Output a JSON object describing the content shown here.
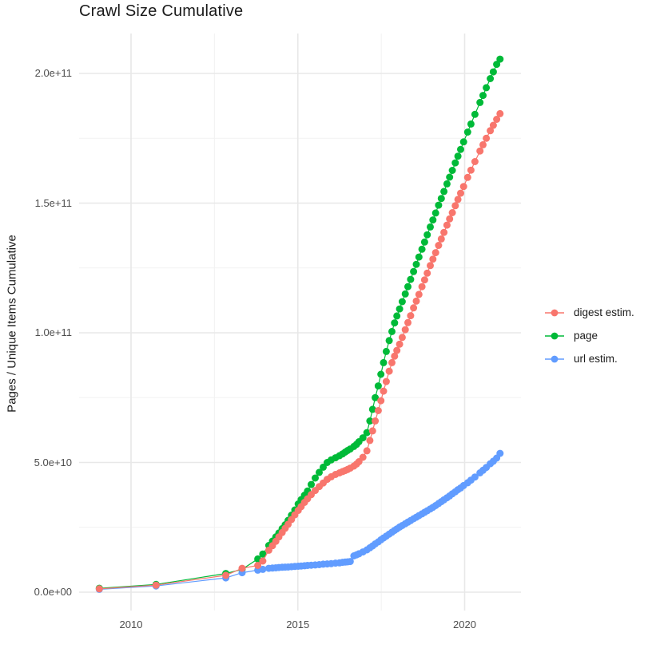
{
  "header": {
    "title": "Crawl Size Cumulative"
  },
  "legend": {
    "items": [
      {
        "label": "digest estim.",
        "color": "#F8766D"
      },
      {
        "label": "page",
        "color": "#00BA38"
      },
      {
        "label": "url estim.",
        "color": "#619CFF"
      }
    ]
  },
  "chart_data": {
    "type": "line",
    "title": "Crawl Size Cumulative",
    "xlabel": "",
    "ylabel": "Pages / Unique Items Cumulative",
    "grid": true,
    "legend_position": "right",
    "background": "#ffffff",
    "grid_major_color": "#e8e8e8",
    "grid_minor_color": "#f2f2f2",
    "xlim": [
      2008.44,
      2021.69
    ],
    "ylim": [
      -7100000000.0,
      215400000000.0
    ],
    "x_ticks": [
      {
        "label": "2010",
        "value": 2010
      },
      {
        "label": "2015",
        "value": 2015
      },
      {
        "label": "2020",
        "value": 2020
      }
    ],
    "x_minor_ticks": [
      2012.5,
      2017.5
    ],
    "y_ticks": [
      {
        "label": "0.0e+00",
        "value": 0
      },
      {
        "label": "5.0e+10",
        "value": 50000000000.0
      },
      {
        "label": "1.0e+11",
        "value": 100000000000.0
      },
      {
        "label": "1.5e+11",
        "value": 150000000000.0
      },
      {
        "label": "2.0e+11",
        "value": 200000000000.0
      }
    ],
    "y_minor_ticks": [
      25000000000.0,
      75000000000.0,
      125000000000.0,
      175000000000.0
    ],
    "series": [
      {
        "name": "digest estim.",
        "color": "#F8766D",
        "points": [
          [
            2009.05,
            1300000000.0
          ],
          [
            2010.75,
            2700000000.0
          ],
          [
            2012.84,
            6500000000.0
          ],
          [
            2013.33,
            9200000000.0
          ],
          [
            2013.8,
            10300000000.0
          ],
          [
            2013.95,
            12000000000.0
          ],
          [
            2014.13,
            16200000000.0
          ],
          [
            2014.24,
            17900000000.0
          ],
          [
            2014.34,
            19600000000.0
          ],
          [
            2014.43,
            21300000000.0
          ],
          [
            2014.53,
            23000000000.0
          ],
          [
            2014.62,
            24600000000.0
          ],
          [
            2014.71,
            26200000000.0
          ],
          [
            2014.81,
            28000000000.0
          ],
          [
            2014.91,
            29800000000.0
          ],
          [
            2015.01,
            31500000000.0
          ],
          [
            2015.1,
            33000000000.0
          ],
          [
            2015.2,
            34600000000.0
          ],
          [
            2015.29,
            36000000000.0
          ],
          [
            2015.4,
            37600000000.0
          ],
          [
            2015.52,
            39200000000.0
          ],
          [
            2015.64,
            40700000000.0
          ],
          [
            2015.76,
            42100000000.0
          ],
          [
            2015.88,
            43500000000.0
          ],
          [
            2016.0,
            44500000000.0
          ],
          [
            2016.13,
            45400000000.0
          ],
          [
            2016.25,
            46000000000.0
          ],
          [
            2016.34,
            46500000000.0
          ],
          [
            2016.42,
            46900000000.0
          ],
          [
            2016.49,
            47300000000.0
          ],
          [
            2016.57,
            47800000000.0
          ],
          [
            2016.68,
            48600000000.0
          ],
          [
            2016.76,
            49400000000.0
          ],
          [
            2016.83,
            50300000000.0
          ],
          [
            2016.95,
            52000000000.0
          ],
          [
            2017.07,
            54500000000.0
          ],
          [
            2017.16,
            58500000000.0
          ],
          [
            2017.24,
            62200000000.0
          ],
          [
            2017.32,
            66000000000.0
          ],
          [
            2017.41,
            70000000000.0
          ],
          [
            2017.49,
            73800000000.0
          ],
          [
            2017.57,
            77500000000.0
          ],
          [
            2017.65,
            81200000000.0
          ],
          [
            2017.74,
            85200000000.0
          ],
          [
            2017.82,
            88500000000.0
          ],
          [
            2017.9,
            91000000000.0
          ],
          [
            2017.97,
            93200000000.0
          ],
          [
            2018.05,
            95600000000.0
          ],
          [
            2018.13,
            98200000000.0
          ],
          [
            2018.22,
            101200000000.0
          ],
          [
            2018.3,
            103900000000.0
          ],
          [
            2018.38,
            106600000000.0
          ],
          [
            2018.47,
            109600000000.0
          ],
          [
            2018.55,
            112200000000.0
          ],
          [
            2018.63,
            114800000000.0
          ],
          [
            2018.72,
            117800000000.0
          ],
          [
            2018.8,
            120400000000.0
          ],
          [
            2018.88,
            123000000000.0
          ],
          [
            2018.97,
            125900000000.0
          ],
          [
            2019.05,
            128400000000.0
          ],
          [
            2019.13,
            130900000000.0
          ],
          [
            2019.22,
            133700000000.0
          ],
          [
            2019.3,
            136200000000.0
          ],
          [
            2019.38,
            138700000000.0
          ],
          [
            2019.47,
            141500000000.0
          ],
          [
            2019.55,
            143900000000.0
          ],
          [
            2019.63,
            146300000000.0
          ],
          [
            2019.72,
            149000000000.0
          ],
          [
            2019.8,
            151400000000.0
          ],
          [
            2019.88,
            153800000000.0
          ],
          [
            2019.97,
            156400000000.0
          ],
          [
            2020.09,
            159900000000.0
          ],
          [
            2020.19,
            162700000000.0
          ],
          [
            2020.31,
            166000000000.0
          ],
          [
            2020.46,
            170100000000.0
          ],
          [
            2020.55,
            172500000000.0
          ],
          [
            2020.65,
            175000000000.0
          ],
          [
            2020.77,
            177900000000.0
          ],
          [
            2020.86,
            180000000000.0
          ],
          [
            2020.96,
            182300000000.0
          ],
          [
            2021.06,
            184500000000.0
          ]
        ]
      },
      {
        "name": "page",
        "color": "#00BA38",
        "points": [
          [
            2009.05,
            1500000000.0
          ],
          [
            2010.75,
            3000000000.0
          ],
          [
            2012.84,
            7200000000.0
          ],
          [
            2013.33,
            8800000000.0
          ],
          [
            2013.8,
            12800000000.0
          ],
          [
            2013.95,
            14700000000.0
          ],
          [
            2014.13,
            18000000000.0
          ],
          [
            2014.24,
            19700000000.0
          ],
          [
            2014.34,
            21300000000.0
          ],
          [
            2014.43,
            22800000000.0
          ],
          [
            2014.53,
            24500000000.0
          ],
          [
            2014.62,
            26000000000.0
          ],
          [
            2014.71,
            27700000000.0
          ],
          [
            2014.81,
            29700000000.0
          ],
          [
            2014.91,
            31700000000.0
          ],
          [
            2015.01,
            34000000000.0
          ],
          [
            2015.1,
            35700000000.0
          ],
          [
            2015.2,
            37400000000.0
          ],
          [
            2015.29,
            39000000000.0
          ],
          [
            2015.4,
            41500000000.0
          ],
          [
            2015.52,
            44000000000.0
          ],
          [
            2015.64,
            46200000000.0
          ],
          [
            2015.76,
            48200000000.0
          ],
          [
            2015.88,
            50000000000.0
          ],
          [
            2016.0,
            51000000000.0
          ],
          [
            2016.13,
            51800000000.0
          ],
          [
            2016.25,
            52600000000.0
          ],
          [
            2016.34,
            53300000000.0
          ],
          [
            2016.42,
            54000000000.0
          ],
          [
            2016.49,
            54600000000.0
          ],
          [
            2016.57,
            55200000000.0
          ],
          [
            2016.68,
            56200000000.0
          ],
          [
            2016.76,
            57000000000.0
          ],
          [
            2016.83,
            58000000000.0
          ],
          [
            2016.95,
            59500000000.0
          ],
          [
            2017.07,
            61500000000.0
          ],
          [
            2017.16,
            66000000000.0
          ],
          [
            2017.24,
            70500000000.0
          ],
          [
            2017.32,
            75000000000.0
          ],
          [
            2017.41,
            79500000000.0
          ],
          [
            2017.49,
            84000000000.0
          ],
          [
            2017.57,
            88500000000.0
          ],
          [
            2017.65,
            92800000000.0
          ],
          [
            2017.74,
            97000000000.0
          ],
          [
            2017.82,
            100500000000.0
          ],
          [
            2017.9,
            103800000000.0
          ],
          [
            2017.97,
            106500000000.0
          ],
          [
            2018.05,
            109200000000.0
          ],
          [
            2018.13,
            112000000000.0
          ],
          [
            2018.22,
            115000000000.0
          ],
          [
            2018.3,
            117800000000.0
          ],
          [
            2018.38,
            120600000000.0
          ],
          [
            2018.47,
            123600000000.0
          ],
          [
            2018.55,
            126400000000.0
          ],
          [
            2018.63,
            129200000000.0
          ],
          [
            2018.72,
            132200000000.0
          ],
          [
            2018.8,
            135000000000.0
          ],
          [
            2018.88,
            137800000000.0
          ],
          [
            2018.97,
            140800000000.0
          ],
          [
            2019.05,
            143500000000.0
          ],
          [
            2019.13,
            146200000000.0
          ],
          [
            2019.22,
            149200000000.0
          ],
          [
            2019.3,
            151800000000.0
          ],
          [
            2019.38,
            154500000000.0
          ],
          [
            2019.47,
            157400000000.0
          ],
          [
            2019.55,
            160000000000.0
          ],
          [
            2019.63,
            162600000000.0
          ],
          [
            2019.72,
            165500000000.0
          ],
          [
            2019.8,
            168100000000.0
          ],
          [
            2019.88,
            170700000000.0
          ],
          [
            2019.97,
            173600000000.0
          ],
          [
            2020.09,
            177400000000.0
          ],
          [
            2020.19,
            180500000000.0
          ],
          [
            2020.31,
            184200000000.0
          ],
          [
            2020.46,
            188800000000.0
          ],
          [
            2020.55,
            191500000000.0
          ],
          [
            2020.65,
            194500000000.0
          ],
          [
            2020.77,
            198000000000.0
          ],
          [
            2020.86,
            200600000000.0
          ],
          [
            2020.96,
            203500000000.0
          ],
          [
            2021.06,
            205500000000.0
          ]
        ]
      },
      {
        "name": "url estim.",
        "color": "#619CFF",
        "points": [
          [
            2009.05,
            1100000000.0
          ],
          [
            2010.75,
            2400000000.0
          ],
          [
            2012.84,
            5500000000.0
          ],
          [
            2013.33,
            7500000000.0
          ],
          [
            2013.8,
            8500000000.0
          ],
          [
            2013.95,
            8800000000.0
          ],
          [
            2014.13,
            9200000000.0
          ],
          [
            2014.24,
            9300000000.0
          ],
          [
            2014.34,
            9400000000.0
          ],
          [
            2014.43,
            9500000000.0
          ],
          [
            2014.53,
            9600000000.0
          ],
          [
            2014.62,
            9650000000.0
          ],
          [
            2014.71,
            9700000000.0
          ],
          [
            2014.81,
            9800000000.0
          ],
          [
            2014.91,
            9900000000.0
          ],
          [
            2015.01,
            10000000000.0
          ],
          [
            2015.1,
            10100000000.0
          ],
          [
            2015.2,
            10200000000.0
          ],
          [
            2015.29,
            10300000000.0
          ],
          [
            2015.4,
            10400000000.0
          ],
          [
            2015.52,
            10500000000.0
          ],
          [
            2015.64,
            10600000000.0
          ],
          [
            2015.76,
            10800000000.0
          ],
          [
            2015.88,
            10900000000.0
          ],
          [
            2016.0,
            11000000000.0
          ],
          [
            2016.13,
            11200000000.0
          ],
          [
            2016.25,
            11300000000.0
          ],
          [
            2016.34,
            11500000000.0
          ],
          [
            2016.42,
            11600000000.0
          ],
          [
            2016.49,
            11700000000.0
          ],
          [
            2016.57,
            11800000000.0
          ],
          [
            2016.68,
            14000000000.0
          ],
          [
            2016.76,
            14400000000.0
          ],
          [
            2016.83,
            14800000000.0
          ],
          [
            2016.95,
            15500000000.0
          ],
          [
            2017.07,
            16300000000.0
          ],
          [
            2017.16,
            17100000000.0
          ],
          [
            2017.24,
            17800000000.0
          ],
          [
            2017.32,
            18600000000.0
          ],
          [
            2017.41,
            19400000000.0
          ],
          [
            2017.49,
            20200000000.0
          ],
          [
            2017.57,
            20900000000.0
          ],
          [
            2017.65,
            21600000000.0
          ],
          [
            2017.74,
            22400000000.0
          ],
          [
            2017.82,
            23100000000.0
          ],
          [
            2017.9,
            23800000000.0
          ],
          [
            2017.97,
            24400000000.0
          ],
          [
            2018.05,
            25100000000.0
          ],
          [
            2018.13,
            25700000000.0
          ],
          [
            2018.22,
            26400000000.0
          ],
          [
            2018.3,
            27000000000.0
          ],
          [
            2018.38,
            27600000000.0
          ],
          [
            2018.47,
            28300000000.0
          ],
          [
            2018.55,
            28900000000.0
          ],
          [
            2018.63,
            29500000000.0
          ],
          [
            2018.72,
            30200000000.0
          ],
          [
            2018.8,
            30800000000.0
          ],
          [
            2018.88,
            31400000000.0
          ],
          [
            2018.97,
            32100000000.0
          ],
          [
            2019.05,
            32700000000.0
          ],
          [
            2019.13,
            33400000000.0
          ],
          [
            2019.22,
            34200000000.0
          ],
          [
            2019.3,
            34900000000.0
          ],
          [
            2019.38,
            35600000000.0
          ],
          [
            2019.47,
            36400000000.0
          ],
          [
            2019.55,
            37100000000.0
          ],
          [
            2019.63,
            37900000000.0
          ],
          [
            2019.72,
            38700000000.0
          ],
          [
            2019.8,
            39500000000.0
          ],
          [
            2019.88,
            40200000000.0
          ],
          [
            2019.97,
            41100000000.0
          ],
          [
            2020.09,
            42200000000.0
          ],
          [
            2020.19,
            43200000000.0
          ],
          [
            2020.31,
            44400000000.0
          ],
          [
            2020.46,
            46000000000.0
          ],
          [
            2020.55,
            47000000000.0
          ],
          [
            2020.65,
            48100000000.0
          ],
          [
            2020.77,
            49500000000.0
          ],
          [
            2020.86,
            50500000000.0
          ],
          [
            2020.96,
            51700000000.0
          ],
          [
            2021.06,
            53500000000.0
          ]
        ]
      }
    ]
  }
}
